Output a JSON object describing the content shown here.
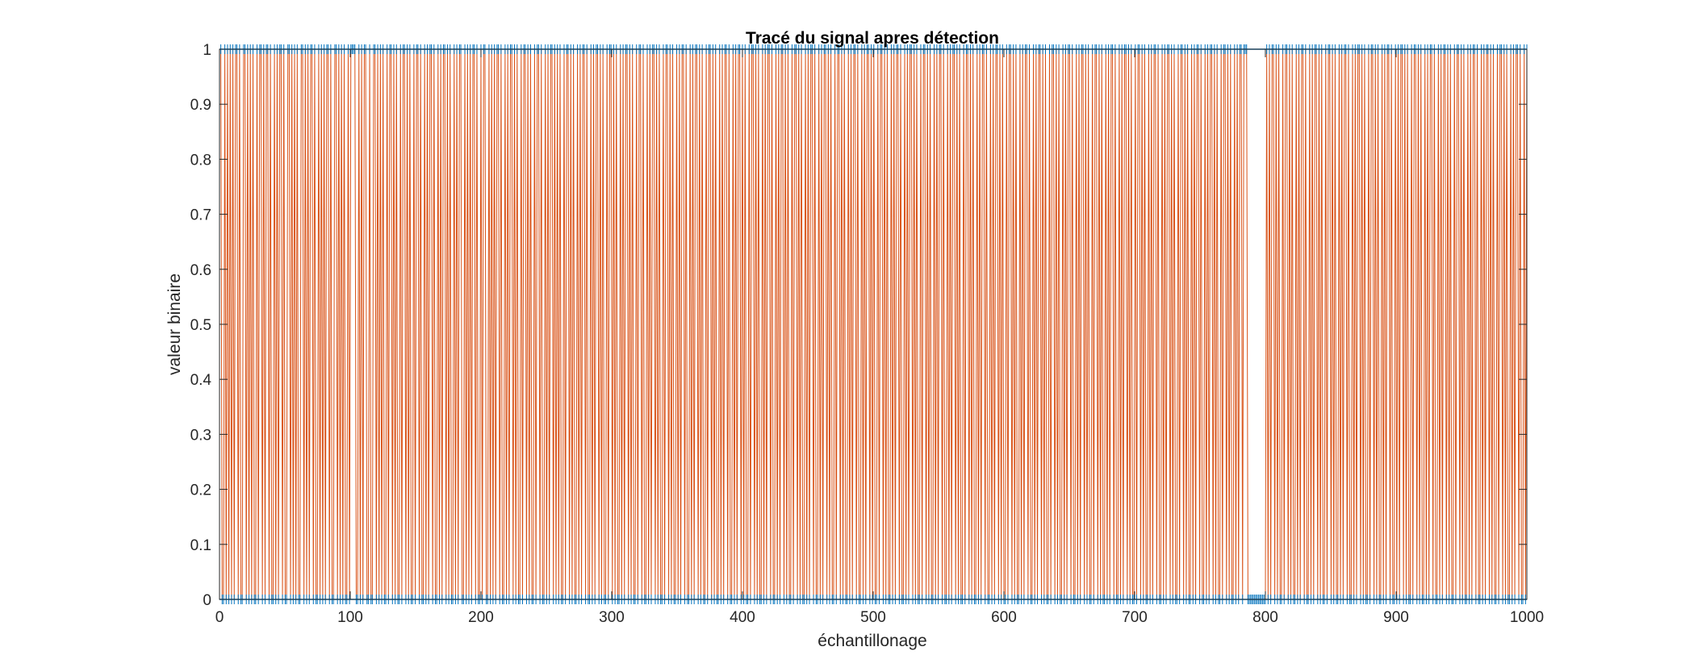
{
  "chart_data": {
    "type": "line",
    "title": "Tracé du signal apres détection",
    "xlabel": "échantillonage",
    "ylabel": "valeur binaire",
    "xlim": [
      0,
      1000
    ],
    "ylim": [
      0,
      1
    ],
    "x_ticks": [
      0,
      100,
      200,
      300,
      400,
      500,
      600,
      700,
      800,
      900,
      1000
    ],
    "x_tick_labels": [
      "0",
      "100",
      "200",
      "300",
      "400",
      "500",
      "600",
      "700",
      "800",
      "900",
      "1000"
    ],
    "y_ticks": [
      0,
      0.1,
      0.2,
      0.3,
      0.4,
      0.5,
      0.6,
      0.7,
      0.8,
      0.9,
      1
    ],
    "y_tick_labels": [
      "0",
      "0.1",
      "0.2",
      "0.3",
      "0.4",
      "0.5",
      "0.6",
      "0.7",
      "0.8",
      "0.9",
      "1"
    ],
    "grid": false,
    "series": [
      {
        "style": "line",
        "color": "#D95319",
        "x_range": [
          1,
          1000
        ],
        "values": [
          1,
          0,
          0,
          1,
          0,
          1,
          0,
          1,
          0,
          1,
          0,
          1,
          1,
          0,
          1,
          0,
          0,
          1,
          1,
          0,
          1,
          0,
          1,
          0,
          1,
          0,
          0,
          1,
          0,
          1,
          1,
          0,
          1,
          0,
          1,
          1,
          0,
          1,
          0,
          0,
          1,
          0,
          1,
          0,
          1,
          1,
          0,
          1,
          0,
          0,
          1,
          1,
          0,
          1,
          0,
          1,
          0,
          1,
          0,
          0,
          1,
          1,
          0,
          1,
          0,
          1,
          0,
          1,
          1,
          0,
          1,
          0,
          0,
          1,
          0,
          1,
          0,
          1,
          0,
          1,
          1,
          0,
          1,
          0,
          0,
          1,
          1,
          0,
          1,
          0,
          1,
          0,
          1,
          0,
          0,
          1,
          0,
          1,
          1,
          1,
          1,
          0,
          0,
          1,
          0,
          1,
          0,
          1,
          1,
          0,
          0,
          1,
          0,
          0,
          1,
          1,
          0,
          1,
          0,
          1,
          0,
          1,
          0,
          0,
          1,
          0,
          1,
          1,
          0,
          1,
          0,
          1,
          0,
          0,
          1,
          0,
          1,
          1,
          0,
          1,
          0,
          1,
          0,
          0,
          1,
          0,
          1,
          1,
          0,
          1,
          0,
          0,
          1,
          0,
          1,
          0,
          1,
          1,
          0,
          1,
          0,
          0,
          1,
          0,
          1,
          0,
          1,
          1,
          0,
          1,
          0,
          1,
          0,
          0,
          1,
          0,
          1,
          0,
          1,
          1,
          0,
          0,
          1,
          0,
          1,
          0,
          1,
          0,
          1,
          1,
          0,
          1,
          0,
          0,
          1,
          0,
          1,
          1,
          0,
          0,
          1,
          0,
          1,
          0,
          1,
          0,
          1,
          1,
          0,
          1,
          0,
          0,
          1,
          0,
          1,
          0,
          1,
          1,
          0,
          1,
          0,
          1,
          0,
          0,
          1,
          0,
          1,
          1,
          0,
          1,
          0,
          1,
          0,
          0,
          1,
          0,
          1,
          1,
          0,
          1,
          0,
          0,
          1,
          0,
          1,
          0,
          1,
          1,
          0,
          1,
          0,
          1,
          0,
          1,
          0,
          0,
          1,
          0,
          1,
          1,
          0,
          1,
          0,
          1,
          0,
          0,
          1,
          0,
          1,
          0,
          1,
          1,
          0,
          1,
          0,
          0,
          1,
          0,
          1,
          0,
          1,
          1,
          0,
          1,
          0,
          1,
          0,
          0,
          1,
          0,
          1,
          1,
          0,
          1,
          0,
          1,
          0,
          0,
          1,
          0,
          1,
          0,
          1,
          1,
          0,
          1,
          0,
          1,
          0,
          0,
          1,
          0,
          1,
          1,
          0,
          1,
          0,
          0,
          1,
          0,
          1,
          0,
          1,
          1,
          0,
          1,
          0,
          1,
          0,
          0,
          1,
          0,
          1,
          1,
          0,
          1,
          0,
          1,
          0,
          0,
          1,
          0,
          1,
          0,
          1,
          1,
          0,
          1,
          0,
          0,
          1,
          0,
          1,
          0,
          1,
          1,
          0,
          1,
          0,
          1,
          0,
          0,
          1,
          0,
          1,
          1,
          0,
          1,
          0,
          1,
          0,
          0,
          1,
          0,
          1,
          0,
          1,
          1,
          0,
          1,
          0,
          0,
          1,
          0,
          1,
          0,
          1,
          1,
          0,
          1,
          0,
          1,
          0,
          0,
          1,
          0,
          1,
          1,
          0,
          1,
          0,
          1,
          0,
          0,
          1,
          0,
          1,
          0,
          1,
          1,
          0,
          1,
          0,
          0,
          1,
          0,
          1,
          0,
          1,
          1,
          0,
          1,
          0,
          1,
          0,
          0,
          1,
          0,
          1,
          1,
          0,
          1,
          0,
          1,
          0,
          0,
          1,
          0,
          1,
          0,
          1,
          1,
          0,
          1,
          0,
          0,
          1,
          0,
          1,
          0,
          1,
          1,
          0,
          1,
          0,
          1,
          0,
          0,
          1,
          0,
          1,
          1,
          0,
          1,
          0,
          1,
          0,
          0,
          1,
          0,
          1,
          0,
          1,
          1,
          0,
          1,
          0,
          0,
          1,
          0,
          1,
          0,
          1,
          1,
          0,
          1,
          0,
          1,
          0,
          0,
          1,
          0,
          1,
          1,
          0,
          1,
          0,
          1,
          0,
          0,
          1,
          0,
          1,
          0,
          1,
          1,
          0,
          1,
          0,
          0,
          1,
          0,
          1,
          0,
          1,
          1,
          0,
          1,
          0,
          1,
          0,
          0,
          1,
          0,
          1,
          1,
          0,
          1,
          0,
          1,
          0,
          0,
          1,
          0,
          1,
          0,
          1,
          1,
          0,
          1,
          0,
          0,
          1,
          0,
          1,
          0,
          1,
          1,
          0,
          1,
          0,
          1,
          0,
          0,
          1,
          0,
          1,
          1,
          0,
          1,
          0,
          1,
          0,
          0,
          1,
          0,
          1,
          0,
          1,
          1,
          0,
          1,
          0,
          0,
          1,
          0,
          1,
          0,
          1,
          1,
          0,
          1,
          0,
          1,
          0,
          0,
          1,
          0,
          1,
          1,
          0,
          1,
          0,
          1,
          0,
          0,
          1,
          0,
          1,
          0,
          1,
          1,
          0,
          1,
          0,
          0,
          1,
          0,
          1,
          0,
          1,
          1,
          0,
          1,
          0,
          1,
          0,
          0,
          1,
          0,
          1,
          1,
          0,
          1,
          0,
          1,
          0,
          0,
          1,
          0,
          1,
          0,
          1,
          1,
          0,
          1,
          0,
          0,
          1,
          0,
          1,
          0,
          1,
          1,
          0,
          1,
          0,
          1,
          0,
          0,
          1,
          0,
          1,
          1,
          0,
          1,
          0,
          1,
          0,
          0,
          1,
          0,
          1,
          0,
          1,
          1,
          0,
          1,
          0,
          0,
          1,
          0,
          1,
          0,
          1,
          1,
          0,
          1,
          0,
          1,
          0,
          0,
          1,
          0,
          1,
          1,
          0,
          1,
          0,
          1,
          0,
          0,
          1,
          0,
          1,
          0,
          1,
          1,
          0,
          1,
          0,
          0,
          1,
          0,
          1,
          0,
          1,
          1,
          0,
          1,
          0,
          1,
          0,
          0,
          1,
          0,
          1,
          1,
          0,
          1,
          0,
          1,
          0,
          0,
          1,
          0,
          1,
          0,
          1,
          1,
          0,
          1,
          0,
          0,
          1,
          0,
          1,
          0,
          1,
          1,
          0,
          1,
          0,
          1,
          0,
          0,
          1,
          0,
          1,
          1,
          0,
          1,
          0,
          1,
          0,
          0,
          1,
          0,
          1,
          0,
          1,
          1,
          0,
          1,
          1,
          1,
          0,
          0,
          0,
          0,
          0,
          0,
          0,
          0,
          0,
          0,
          0,
          0,
          0,
          0,
          1,
          0,
          1,
          0,
          1,
          1,
          0,
          1,
          0,
          1,
          0,
          0,
          1,
          0,
          1,
          1,
          0,
          1,
          0,
          1,
          0,
          0,
          1,
          0,
          1,
          0,
          1,
          1,
          0,
          1,
          0,
          0,
          1,
          0,
          1,
          0,
          1,
          1,
          0,
          1,
          0,
          1,
          0,
          0,
          1,
          0,
          1,
          1,
          0,
          1,
          0,
          1,
          0,
          0,
          1,
          0,
          1,
          0,
          1,
          1,
          0,
          1,
          0,
          0,
          1,
          0,
          1,
          0,
          1,
          1,
          0,
          1,
          0,
          1,
          0,
          0,
          1,
          0,
          1,
          1,
          0,
          1,
          0,
          1,
          0,
          0,
          1,
          0,
          1,
          0,
          1,
          1,
          0,
          1,
          0,
          0,
          1,
          0,
          1,
          0,
          1,
          1,
          0,
          1,
          0,
          1,
          0,
          0,
          1,
          0,
          1,
          1,
          0,
          1,
          0,
          1,
          0,
          0,
          1,
          0,
          1,
          0,
          1,
          1,
          0,
          1,
          0,
          0,
          1,
          0,
          1,
          0,
          1,
          1,
          0,
          1,
          0,
          1,
          0,
          0,
          1,
          0,
          1,
          1,
          0,
          1,
          0,
          1,
          0,
          0,
          1,
          0,
          1,
          0,
          1,
          1,
          0,
          1,
          0,
          0,
          1,
          0,
          1,
          0,
          1,
          1,
          0,
          1,
          0,
          1,
          0,
          0,
          1,
          0,
          1,
          1,
          0,
          1,
          0,
          1,
          0,
          0,
          1,
          0,
          1,
          0,
          1,
          1,
          0,
          1,
          0,
          0,
          1,
          0,
          1
        ]
      },
      {
        "style": "markers",
        "color": "#0072BD"
      }
    ]
  }
}
